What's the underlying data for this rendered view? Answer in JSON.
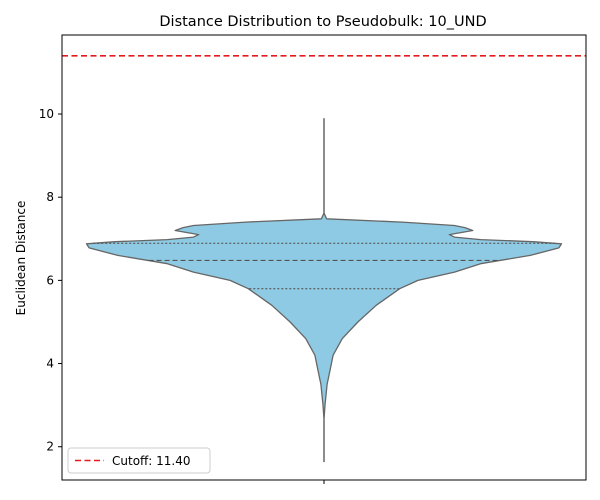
{
  "chart_data": {
    "type": "violin",
    "title": "Distance Distribution to Pseudobulk: 10_UND",
    "ylabel": "Euclidean Distance",
    "xlabel": "",
    "ylim": [
      1.2,
      11.9
    ],
    "yticks": [
      2,
      4,
      6,
      8,
      10
    ],
    "violin": {
      "color": "#8ecae3",
      "edge_color": "#666666",
      "min": 1.63,
      "max": 9.9,
      "quartiles": [
        5.8,
        6.48,
        6.89
      ],
      "profile": [
        [
          2.65,
          0.0
        ],
        [
          3.0,
          0.004
        ],
        [
          3.5,
          0.012
        ],
        [
          3.8,
          0.022
        ],
        [
          4.2,
          0.035
        ],
        [
          4.6,
          0.07
        ],
        [
          5.0,
          0.13
        ],
        [
          5.4,
          0.2
        ],
        [
          5.8,
          0.29
        ],
        [
          6.0,
          0.36
        ],
        [
          6.2,
          0.5
        ],
        [
          6.4,
          0.6
        ],
        [
          6.6,
          0.79
        ],
        [
          6.78,
          0.9
        ],
        [
          6.88,
          0.91
        ],
        [
          6.93,
          0.8
        ],
        [
          6.98,
          0.6
        ],
        [
          7.04,
          0.5
        ],
        [
          7.1,
          0.48
        ],
        [
          7.2,
          0.57
        ],
        [
          7.27,
          0.54
        ],
        [
          7.32,
          0.5
        ],
        [
          7.4,
          0.3
        ],
        [
          7.48,
          0.01
        ],
        [
          7.55,
          0.005
        ],
        [
          7.62,
          0.0
        ]
      ]
    },
    "reference_line": {
      "value": 11.4,
      "color": "#e41a1c",
      "style": "dashed"
    },
    "legend": {
      "position": "lower-left",
      "entries": [
        "Cutoff: 11.40"
      ]
    }
  }
}
